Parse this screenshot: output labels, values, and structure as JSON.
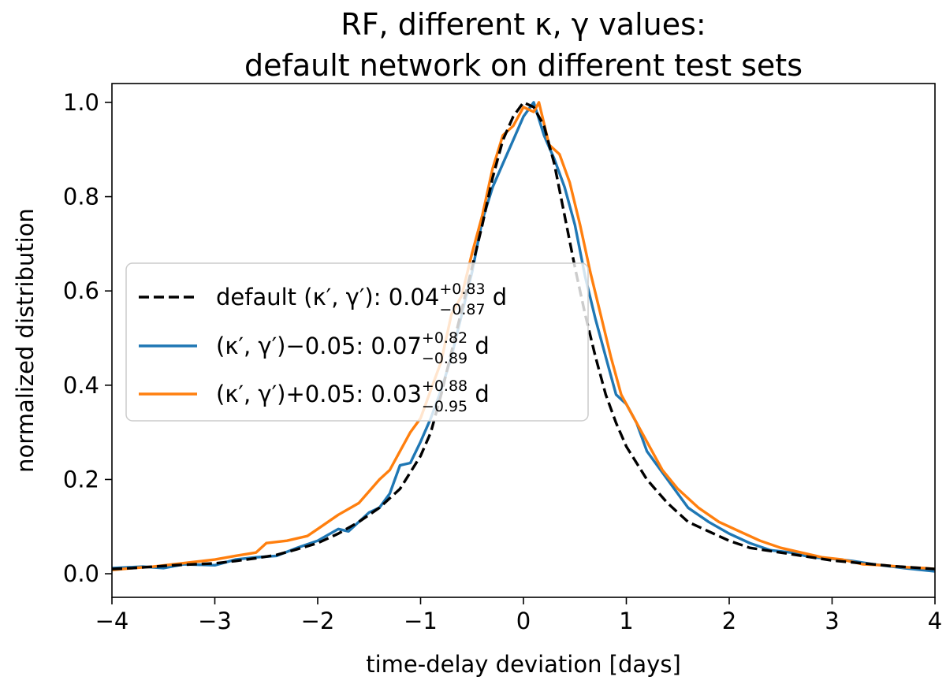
{
  "chart_data": {
    "type": "line",
    "title": [
      "RF, different κ, γ values:",
      "default network on different test sets"
    ],
    "xlabel": "time-delay deviation [days]",
    "ylabel": "normalized distribution",
    "xlim": [
      -4,
      4
    ],
    "ylim": [
      -0.05,
      1.04
    ],
    "xticks": [
      -4,
      -3,
      -2,
      -1,
      0,
      1,
      2,
      3,
      4
    ],
    "xtick_labels": [
      "−4",
      "−3",
      "−2",
      "−1",
      "0",
      "1",
      "2",
      "3",
      "4"
    ],
    "yticks": [
      0.0,
      0.2,
      0.4,
      0.6,
      0.8,
      1.0
    ],
    "ytick_labels": [
      "0.0",
      "0.2",
      "0.4",
      "0.6",
      "0.8",
      "1.0"
    ],
    "grid": false,
    "legend_position": "center-left",
    "series": [
      {
        "name": "default",
        "color": "#000000",
        "style": "dashed",
        "legend": {
          "prefix": "default (κ′, γ′): ",
          "value": "0.04",
          "upper": "+0.83",
          "lower": "−0.87",
          "suffix": " d"
        },
        "points": [
          [
            -4.0,
            0.01
          ],
          [
            -3.8,
            0.012
          ],
          [
            -3.6,
            0.015
          ],
          [
            -3.4,
            0.018
          ],
          [
            -3.2,
            0.02
          ],
          [
            -3.0,
            0.022
          ],
          [
            -2.8,
            0.027
          ],
          [
            -2.6,
            0.033
          ],
          [
            -2.4,
            0.04
          ],
          [
            -2.2,
            0.052
          ],
          [
            -2.0,
            0.065
          ],
          [
            -1.8,
            0.085
          ],
          [
            -1.6,
            0.11
          ],
          [
            -1.4,
            0.14
          ],
          [
            -1.2,
            0.18
          ],
          [
            -1.0,
            0.25
          ],
          [
            -0.9,
            0.3
          ],
          [
            -0.8,
            0.38
          ],
          [
            -0.7,
            0.47
          ],
          [
            -0.6,
            0.56
          ],
          [
            -0.5,
            0.65
          ],
          [
            -0.4,
            0.74
          ],
          [
            -0.3,
            0.84
          ],
          [
            -0.2,
            0.92
          ],
          [
            -0.1,
            0.97
          ],
          [
            0.0,
            1.0
          ],
          [
            0.1,
            0.99
          ],
          [
            0.2,
            0.95
          ],
          [
            0.3,
            0.87
          ],
          [
            0.4,
            0.76
          ],
          [
            0.5,
            0.65
          ],
          [
            0.6,
            0.55
          ],
          [
            0.7,
            0.46
          ],
          [
            0.8,
            0.38
          ],
          [
            0.9,
            0.32
          ],
          [
            1.0,
            0.27
          ],
          [
            1.2,
            0.2
          ],
          [
            1.4,
            0.15
          ],
          [
            1.6,
            0.11
          ],
          [
            1.8,
            0.09
          ],
          [
            2.0,
            0.07
          ],
          [
            2.2,
            0.055
          ],
          [
            2.5,
            0.045
          ],
          [
            2.8,
            0.035
          ],
          [
            3.0,
            0.028
          ],
          [
            3.3,
            0.022
          ],
          [
            3.6,
            0.016
          ],
          [
            4.0,
            0.01
          ]
        ]
      },
      {
        "name": "minus",
        "color": "#1f77b4",
        "style": "solid",
        "legend": {
          "prefix": "(κ′, γ′)−0.05: ",
          "value": "0.07",
          "upper": "+0.82",
          "lower": "−0.89",
          "suffix": " d"
        },
        "points": [
          [
            -4.0,
            0.012
          ],
          [
            -3.7,
            0.015
          ],
          [
            -3.5,
            0.012
          ],
          [
            -3.3,
            0.02
          ],
          [
            -3.0,
            0.018
          ],
          [
            -2.8,
            0.03
          ],
          [
            -2.6,
            0.035
          ],
          [
            -2.4,
            0.038
          ],
          [
            -2.2,
            0.055
          ],
          [
            -2.0,
            0.07
          ],
          [
            -1.8,
            0.095
          ],
          [
            -1.7,
            0.09
          ],
          [
            -1.5,
            0.13
          ],
          [
            -1.4,
            0.14
          ],
          [
            -1.3,
            0.17
          ],
          [
            -1.2,
            0.23
          ],
          [
            -1.1,
            0.235
          ],
          [
            -1.0,
            0.28
          ],
          [
            -0.9,
            0.33
          ],
          [
            -0.8,
            0.39
          ],
          [
            -0.7,
            0.46
          ],
          [
            -0.6,
            0.55
          ],
          [
            -0.5,
            0.64
          ],
          [
            -0.4,
            0.75
          ],
          [
            -0.3,
            0.82
          ],
          [
            -0.2,
            0.87
          ],
          [
            -0.1,
            0.92
          ],
          [
            0.0,
            0.97
          ],
          [
            0.1,
            1.0
          ],
          [
            0.2,
            0.93
          ],
          [
            0.3,
            0.88
          ],
          [
            0.4,
            0.82
          ],
          [
            0.5,
            0.74
          ],
          [
            0.6,
            0.63
          ],
          [
            0.7,
            0.54
          ],
          [
            0.8,
            0.46
          ],
          [
            0.9,
            0.38
          ],
          [
            1.0,
            0.36
          ],
          [
            1.1,
            0.32
          ],
          [
            1.2,
            0.26
          ],
          [
            1.3,
            0.23
          ],
          [
            1.4,
            0.2
          ],
          [
            1.6,
            0.14
          ],
          [
            1.8,
            0.11
          ],
          [
            2.0,
            0.085
          ],
          [
            2.2,
            0.065
          ],
          [
            2.4,
            0.05
          ],
          [
            2.6,
            0.045
          ],
          [
            2.8,
            0.035
          ],
          [
            3.0,
            0.032
          ],
          [
            3.2,
            0.027
          ],
          [
            3.4,
            0.02
          ],
          [
            3.7,
            0.012
          ],
          [
            4.0,
            0.005
          ]
        ]
      },
      {
        "name": "plus",
        "color": "#ff7f0e",
        "style": "solid",
        "legend": {
          "prefix": "(κ′, γ′)+0.05: ",
          "value": "0.03",
          "upper": "+0.88",
          "lower": "−0.95",
          "suffix": " d"
        },
        "points": [
          [
            -4.0,
            0.008
          ],
          [
            -3.8,
            0.012
          ],
          [
            -3.6,
            0.015
          ],
          [
            -3.4,
            0.02
          ],
          [
            -3.2,
            0.025
          ],
          [
            -3.0,
            0.03
          ],
          [
            -2.8,
            0.038
          ],
          [
            -2.6,
            0.045
          ],
          [
            -2.5,
            0.065
          ],
          [
            -2.3,
            0.07
          ],
          [
            -2.1,
            0.08
          ],
          [
            -2.0,
            0.095
          ],
          [
            -1.8,
            0.125
          ],
          [
            -1.6,
            0.15
          ],
          [
            -1.4,
            0.2
          ],
          [
            -1.3,
            0.22
          ],
          [
            -1.2,
            0.26
          ],
          [
            -1.1,
            0.3
          ],
          [
            -1.0,
            0.33
          ],
          [
            -0.9,
            0.39
          ],
          [
            -0.8,
            0.45
          ],
          [
            -0.7,
            0.55
          ],
          [
            -0.6,
            0.59
          ],
          [
            -0.5,
            0.68
          ],
          [
            -0.4,
            0.76
          ],
          [
            -0.3,
            0.86
          ],
          [
            -0.2,
            0.93
          ],
          [
            -0.1,
            0.95
          ],
          [
            0.0,
            0.99
          ],
          [
            0.1,
            0.98
          ],
          [
            0.15,
            1.0
          ],
          [
            0.25,
            0.91
          ],
          [
            0.35,
            0.89
          ],
          [
            0.45,
            0.83
          ],
          [
            0.55,
            0.74
          ],
          [
            0.65,
            0.64
          ],
          [
            0.75,
            0.55
          ],
          [
            0.85,
            0.46
          ],
          [
            0.95,
            0.38
          ],
          [
            1.05,
            0.34
          ],
          [
            1.2,
            0.28
          ],
          [
            1.35,
            0.22
          ],
          [
            1.5,
            0.18
          ],
          [
            1.7,
            0.14
          ],
          [
            1.9,
            0.11
          ],
          [
            2.1,
            0.09
          ],
          [
            2.3,
            0.07
          ],
          [
            2.5,
            0.055
          ],
          [
            2.7,
            0.045
          ],
          [
            2.9,
            0.035
          ],
          [
            3.1,
            0.03
          ],
          [
            3.3,
            0.02
          ],
          [
            3.5,
            0.018
          ],
          [
            3.7,
            0.014
          ],
          [
            3.9,
            0.012
          ],
          [
            4.0,
            0.01
          ]
        ]
      }
    ]
  }
}
